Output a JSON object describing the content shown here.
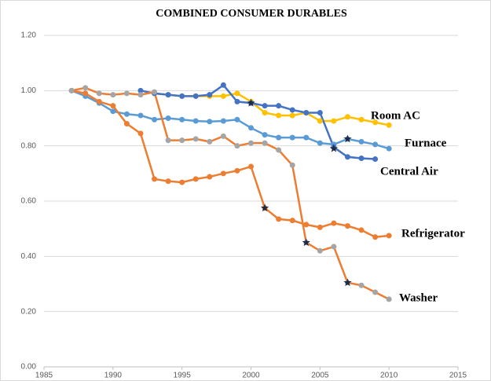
{
  "chart_data": {
    "type": "line",
    "title": "COMBINED CONSUMER DURABLES",
    "x": [
      1987,
      1988,
      1989,
      1990,
      1991,
      1992,
      1993,
      1994,
      1995,
      1996,
      1997,
      1998,
      1999,
      2000,
      2001,
      2002,
      2003,
      2004,
      2005,
      2006,
      2007,
      2008,
      2009,
      2010
    ],
    "series": [
      {
        "name": "Room AC",
        "color": "#ffc000",
        "marker_color": "#ffc000",
        "values": [
          null,
          null,
          null,
          null,
          null,
          null,
          0.99,
          0.985,
          0.98,
          0.98,
          0.98,
          0.98,
          0.99,
          0.96,
          0.92,
          0.91,
          0.91,
          0.92,
          0.89,
          0.89,
          0.905,
          0.895,
          0.885,
          0.875
        ]
      },
      {
        "name": "Furnace",
        "color": "#5b9bd5",
        "marker_color": "#5b9bd5",
        "values": [
          1.0,
          0.98,
          0.955,
          0.925,
          0.915,
          0.91,
          0.895,
          0.9,
          0.895,
          0.89,
          0.888,
          0.89,
          0.895,
          0.865,
          0.84,
          0.83,
          0.83,
          0.83,
          0.81,
          0.805,
          0.825,
          0.815,
          0.805,
          0.79
        ]
      },
      {
        "name": "Central Air",
        "color": "#4472c4",
        "marker_color": "#4472c4",
        "values": [
          null,
          null,
          null,
          null,
          null,
          1.0,
          0.99,
          0.985,
          0.98,
          0.98,
          0.985,
          1.02,
          0.96,
          0.955,
          0.945,
          0.945,
          0.93,
          0.92,
          0.92,
          0.795,
          0.76,
          0.755,
          0.752,
          null
        ]
      },
      {
        "name": "Refrigerator",
        "color": "#ed7d31",
        "marker_color": "#ed7d31",
        "values": [
          1.0,
          0.99,
          0.96,
          0.945,
          0.88,
          0.845,
          0.68,
          0.672,
          0.668,
          0.68,
          0.688,
          0.7,
          0.71,
          0.725,
          0.575,
          0.535,
          0.53,
          0.515,
          0.505,
          0.52,
          0.51,
          0.495,
          0.47,
          0.475
        ]
      },
      {
        "name": "Washer",
        "color": "#ed7d31",
        "marker_color": "#a5a5a5",
        "values": [
          1.0,
          1.01,
          0.99,
          0.985,
          0.99,
          0.985,
          0.995,
          0.82,
          0.82,
          0.825,
          0.815,
          0.835,
          0.8,
          0.81,
          0.81,
          0.785,
          0.73,
          0.45,
          0.42,
          0.435,
          0.305,
          0.295,
          0.27,
          0.245
        ]
      }
    ],
    "stars": {
      "x": [
        2000,
        2001,
        2004,
        2006,
        2007,
        2007
      ],
      "values": [
        0.955,
        0.575,
        0.45,
        0.79,
        0.825,
        0.305
      ]
    },
    "xlim": [
      1985,
      2015
    ],
    "xticks": [
      1985,
      1990,
      1995,
      2000,
      2005,
      2010,
      2015
    ],
    "ylim": [
      0,
      1.2
    ],
    "yticks": [
      {
        "value": 0,
        "label": "0.00"
      },
      {
        "value": 0.2,
        "label": "0.20"
      },
      {
        "value": 0.4,
        "label": "0.40"
      },
      {
        "value": 0.6,
        "label": "0.60"
      },
      {
        "value": 0.8,
        "label": "0.80"
      },
      {
        "value": 1.0,
        "label": "1.00"
      },
      {
        "value": 1.2,
        "label": "1.20"
      }
    ],
    "grid": true
  }
}
